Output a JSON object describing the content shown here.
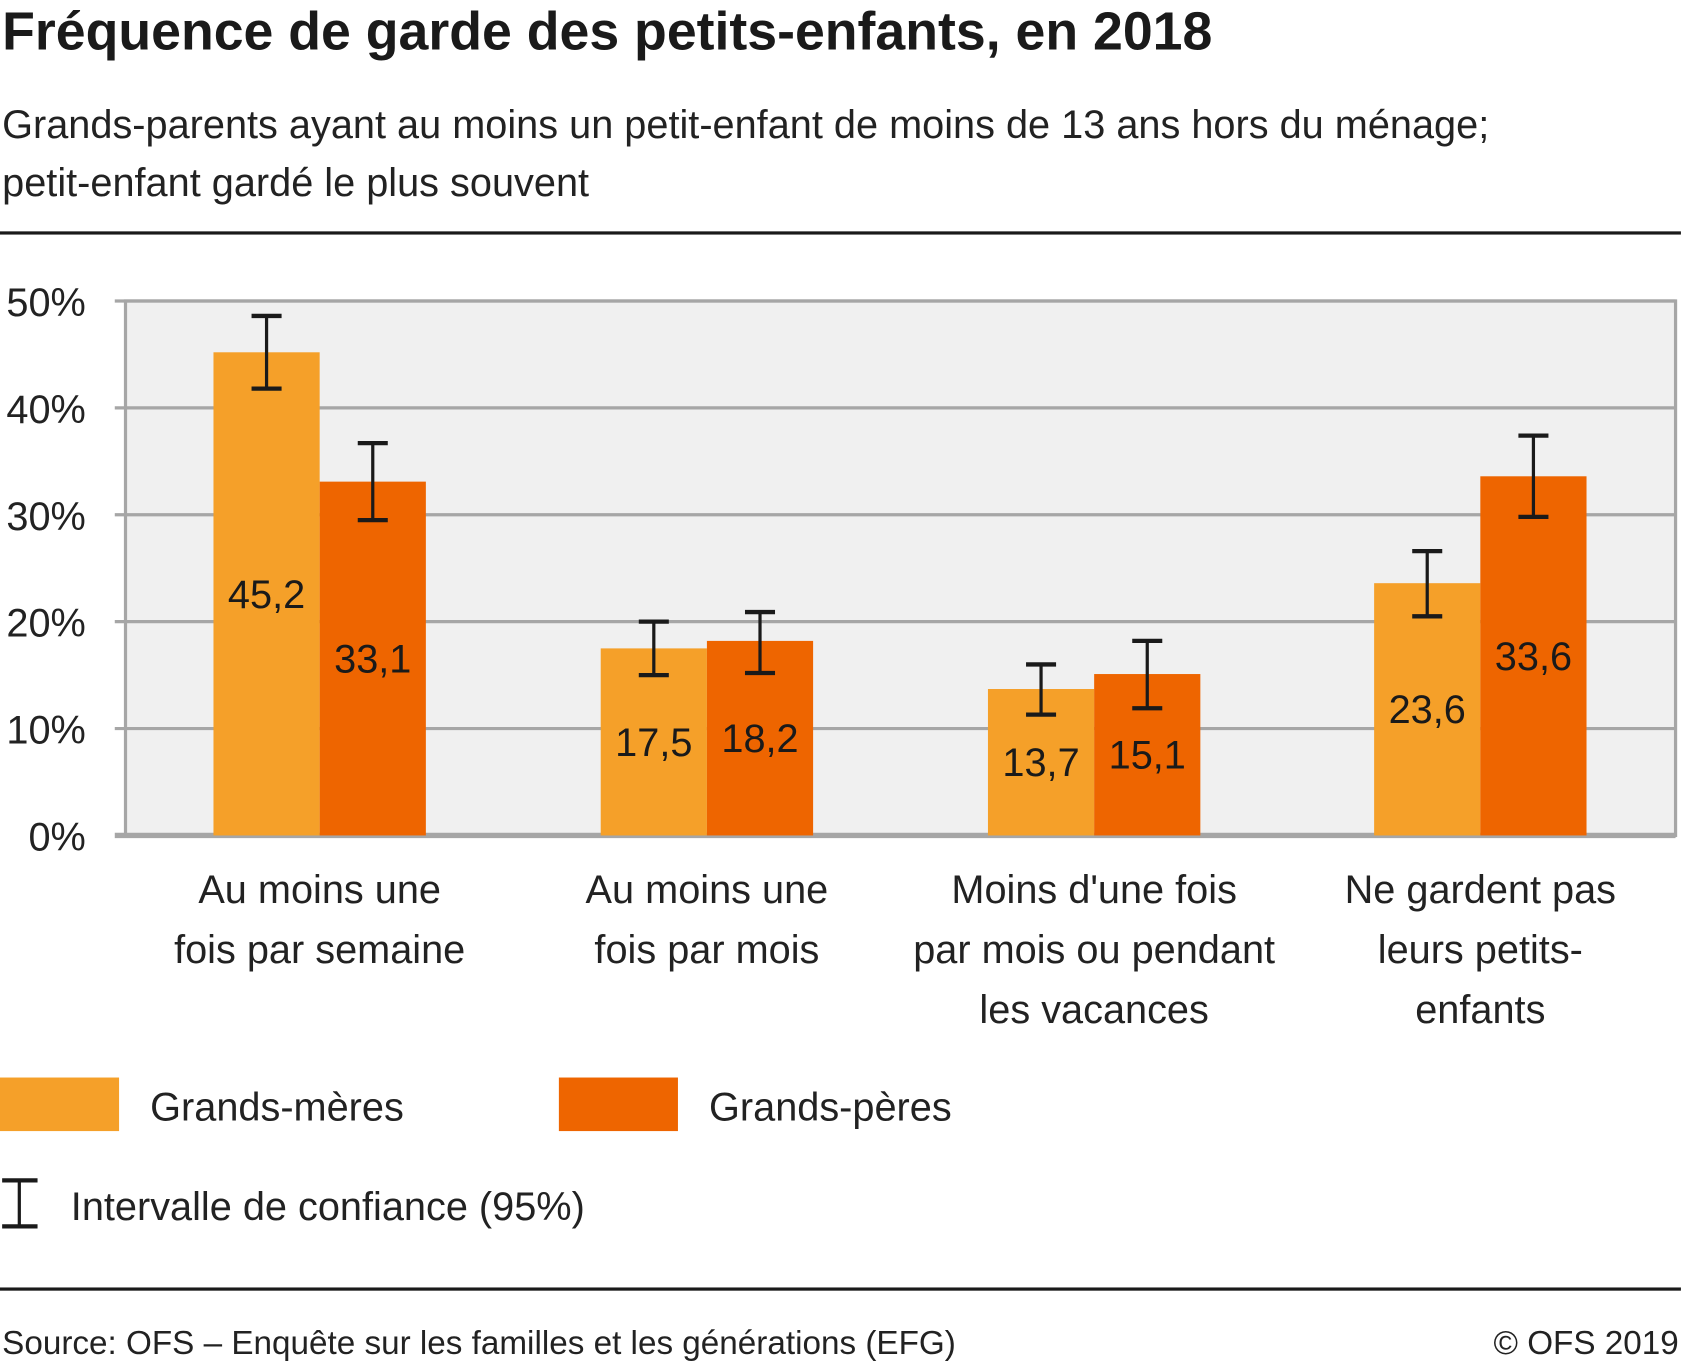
{
  "title": "Fréquence de garde des petits-enfants, en 2018",
  "subtitle": "Grands-parents ayant au moins un petit-enfant de moins de 13 ans hors du ménage; petit-enfant gardé le plus souvent",
  "source": "Source: OFS – Enquête sur les familles et les générations (EFG)",
  "copyright": "© OFS 2019",
  "chart_data": {
    "type": "bar",
    "title": "Fréquence de garde des petits-enfants, en 2018",
    "categories": [
      [
        "Au moins une",
        "fois par semaine"
      ],
      [
        "Au moins une",
        "fois par mois"
      ],
      [
        "Moins d'une fois",
        "par mois ou pendant",
        "les vacances"
      ],
      [
        "Ne gardent pas",
        "leurs petits-",
        "enfants"
      ]
    ],
    "series": [
      {
        "name": "Grands-mères",
        "color": "#f5a029",
        "values": [
          45.2,
          17.5,
          13.7,
          23.6
        ],
        "labels": [
          "45,2",
          "17,5",
          "13,7",
          "23,6"
        ],
        "ci": [
          [
            41.8,
            48.6
          ],
          [
            15.0,
            20.0
          ],
          [
            11.3,
            16.0
          ],
          [
            20.5,
            26.6
          ]
        ]
      },
      {
        "name": "Grands-pères",
        "color": "#ee6500",
        "values": [
          33.1,
          18.2,
          15.1,
          33.6
        ],
        "labels": [
          "33,1",
          "18,2",
          "15,1",
          "33,6"
        ],
        "ci": [
          [
            29.5,
            36.7
          ],
          [
            15.2,
            20.9
          ],
          [
            11.9,
            18.2
          ],
          [
            29.8,
            37.4
          ]
        ]
      }
    ],
    "ylim": [
      0,
      50
    ],
    "yticks": [
      "0%",
      "10%",
      "20%",
      "30%",
      "40%",
      "50%"
    ],
    "grid": true,
    "legend_placement": "bottom-left",
    "ci_legend": "Intervalle de confiance (95%)"
  }
}
